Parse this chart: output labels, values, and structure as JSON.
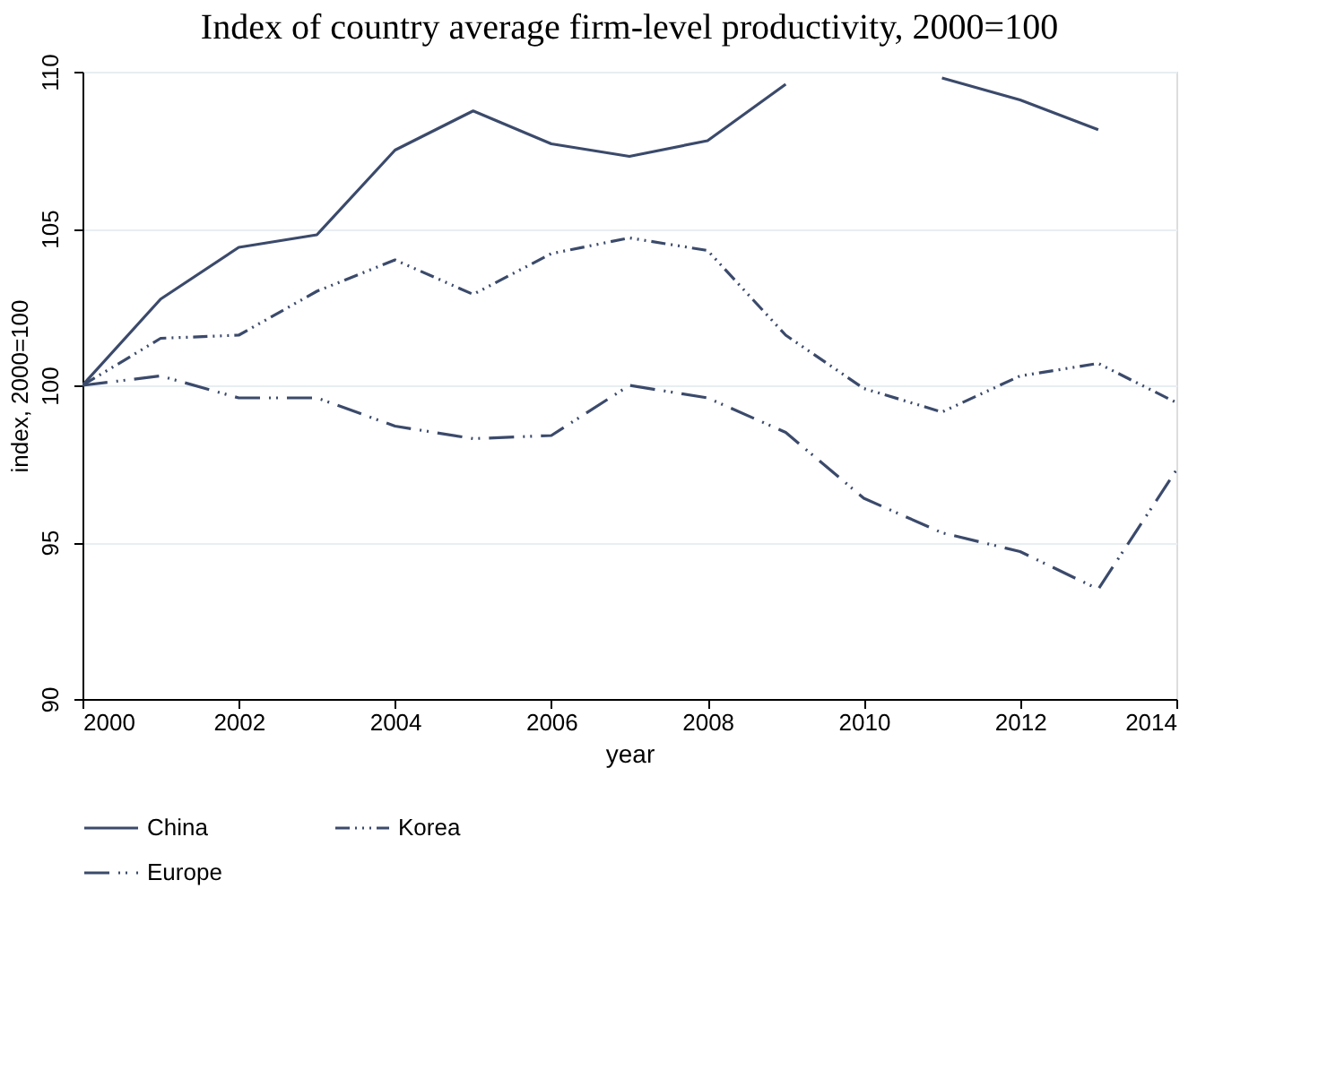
{
  "chart_data": {
    "type": "line",
    "title": "Index of country average firm-level productivity, 2000=100",
    "xlabel": "year",
    "ylabel": "index, 2000=100",
    "x": [
      2000,
      2001,
      2002,
      2003,
      2004,
      2005,
      2006,
      2007,
      2008,
      2009,
      2010,
      2011,
      2012,
      2013,
      2014
    ],
    "series": [
      {
        "name": "China",
        "color": "#3b4a6b",
        "line_style": "solid",
        "values": [
          100,
          102.75,
          104.4,
          104.8,
          107.5,
          108.75,
          107.7,
          107.3,
          107.8,
          109.6,
          null,
          109.8,
          109.1,
          108.15,
          null
        ]
      },
      {
        "name": "Korea",
        "color": "#3b4a6b",
        "line_style": "dotted",
        "values": [
          100,
          101.5,
          101.6,
          103,
          104,
          102.9,
          104.2,
          104.7,
          104.3,
          101.6,
          99.9,
          99.15,
          100.3,
          100.7,
          99.45
        ]
      },
      {
        "name": "Europe",
        "color": "#3b4a6b",
        "line_style": "dashed",
        "values": [
          100,
          100.3,
          99.6,
          99.6,
          98.7,
          98.3,
          98.4,
          100,
          99.6,
          98.5,
          96.4,
          95.3,
          94.7,
          93.5,
          97.3
        ]
      }
    ],
    "xlim": [
      2000,
      2014
    ],
    "xticks": [
      2000,
      2002,
      2004,
      2006,
      2008,
      2010,
      2012,
      2014
    ],
    "ylim": [
      90,
      110
    ],
    "yticks": [
      90,
      95,
      100,
      105,
      110
    ],
    "grid": "y",
    "legend": "bottom",
    "marker": "none"
  }
}
